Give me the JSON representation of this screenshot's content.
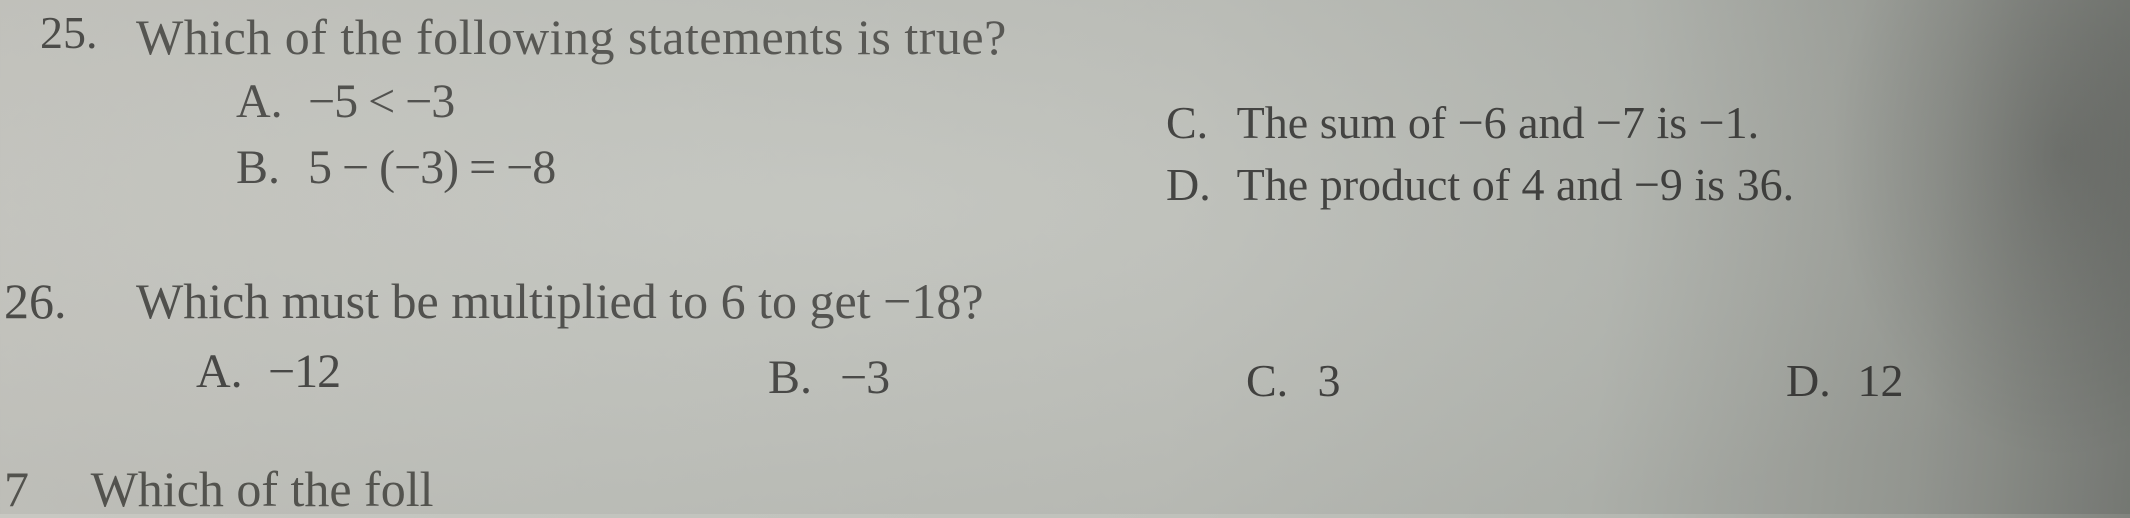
{
  "q25": {
    "number": "25.",
    "stem": "Which of the following statements is true?",
    "A": {
      "letter": "A.",
      "text": "−5 < −3"
    },
    "B": {
      "letter": "B.",
      "text": "5 − (−3) = −8"
    },
    "C": {
      "letter": "C.",
      "text": "The sum of −6 and −7 is −1."
    },
    "D": {
      "letter": "D.",
      "text": "The product of 4 and −9 is 36."
    }
  },
  "q26": {
    "number": "26.",
    "stem": "Which must be multiplied to 6 to get −18?",
    "A": {
      "letter": "A.",
      "text": "−12"
    },
    "B": {
      "letter": "B.",
      "text": "−3"
    },
    "C": {
      "letter": "C.",
      "text": "3"
    },
    "D": {
      "letter": "D.",
      "text": "12"
    }
  },
  "q27": {
    "number": "7",
    "partial": "Which of the foll"
  },
  "style": {
    "font_family": "Times New Roman",
    "stem_fontsize_pt": 37,
    "option_fontsize_pt": 36,
    "number_fontsize_pt": 36,
    "text_color": "#3a3a38",
    "muted_text_color": "#555551",
    "background_gradient": [
      "#c8c8c2",
      "#c2c4be",
      "#bfc1bb",
      "#b5b8b2",
      "#9a9d97",
      "#7a7d78"
    ]
  }
}
